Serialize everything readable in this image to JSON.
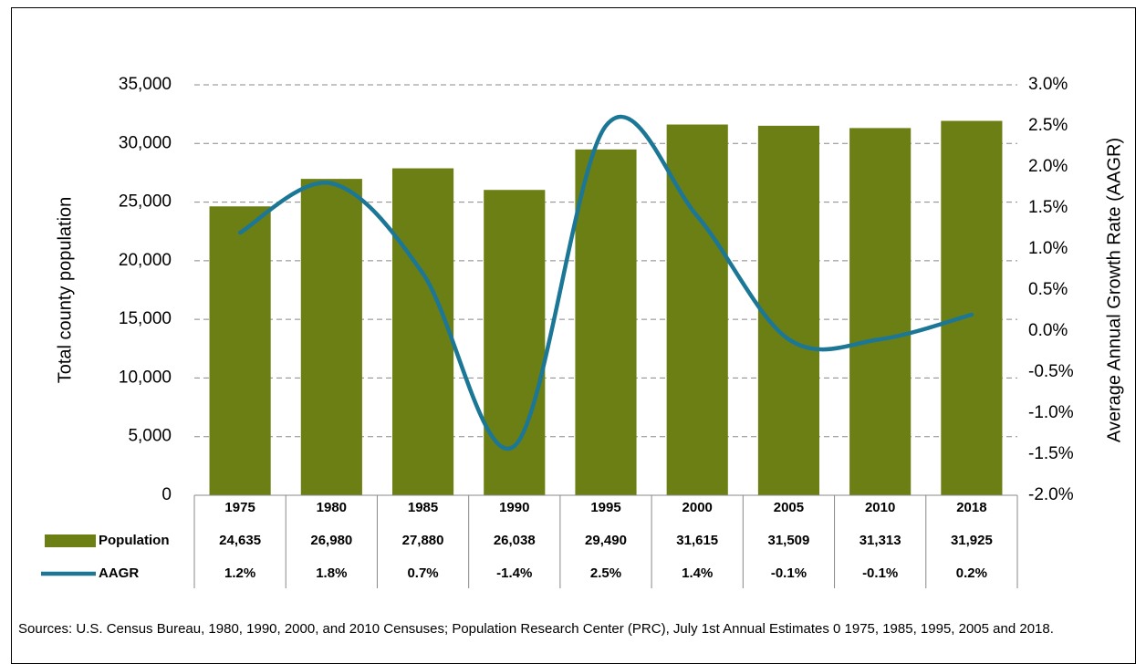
{
  "chart_data": {
    "type": "bar",
    "categories": [
      "1975",
      "1980",
      "1985",
      "1990",
      "1995",
      "2000",
      "2005",
      "2010",
      "2018"
    ],
    "series": [
      {
        "name": "Population",
        "type": "bar",
        "color": "#6b7f14",
        "values": [
          24635,
          26980,
          27880,
          26038,
          29490,
          31615,
          31509,
          31313,
          31925
        ],
        "value_labels": [
          "24,635",
          "26,980",
          "27,880",
          "26,038",
          "29,490",
          "31,615",
          "31,509",
          "31,313",
          "31,925"
        ]
      },
      {
        "name": "AAGR",
        "type": "line",
        "axis": "y2",
        "color": "#1b7795",
        "values": [
          1.2,
          1.8,
          0.7,
          -1.4,
          2.5,
          1.4,
          -0.1,
          -0.1,
          0.2
        ],
        "value_labels": [
          "1.2%",
          "1.8%",
          "0.7%",
          "-1.4%",
          "2.5%",
          "1.4%",
          "-0.1%",
          "-0.1%",
          "0.2%"
        ]
      }
    ],
    "ylabel": "Total county population",
    "y2label": "Average Annual Growth Rate (AAGR)",
    "ylim": [
      0,
      35000
    ],
    "yticks": [
      0,
      {
        "value": 5000,
        "label": "5,000"
      },
      {
        "value": 10000,
        "label": "10,000"
      },
      {
        "value": 15000,
        "label": "15,000"
      },
      {
        "value": 20000,
        "label": "20,000"
      },
      {
        "value": 25000,
        "label": "25,000"
      },
      {
        "value": 30000,
        "label": "30,000"
      },
      {
        "value": 35000,
        "label": "35,000"
      }
    ],
    "y2lim": [
      -2,
      3
    ],
    "y2ticks": [
      {
        "value": -2,
        "label": "-2.0%"
      },
      {
        "value": -1.5,
        "label": "-1.5%"
      },
      {
        "value": -1,
        "label": "-1.0%"
      },
      {
        "value": -0.5,
        "label": "-0.5%"
      },
      {
        "value": 0,
        "label": "0.0%"
      },
      {
        "value": 0.5,
        "label": "0.5%"
      },
      {
        "value": 1,
        "label": "1.0%"
      },
      {
        "value": 1.5,
        "label": "1.5%"
      },
      {
        "value": 2,
        "label": "2.0%"
      },
      {
        "value": 2.5,
        "label": "2.5%"
      },
      {
        "value": 3,
        "label": "3.0%"
      }
    ],
    "negative_tick_color": "#ff0000",
    "grid": true,
    "smooth_line": true,
    "data_table": true,
    "note": "Sources: U.S. Census Bureau, 1980, 1990, 2000, and 2010 Censuses; Population Research Center (PRC), July 1st Annual Estimates 0 1975, 1985, 1995, 2005 and 2018."
  }
}
